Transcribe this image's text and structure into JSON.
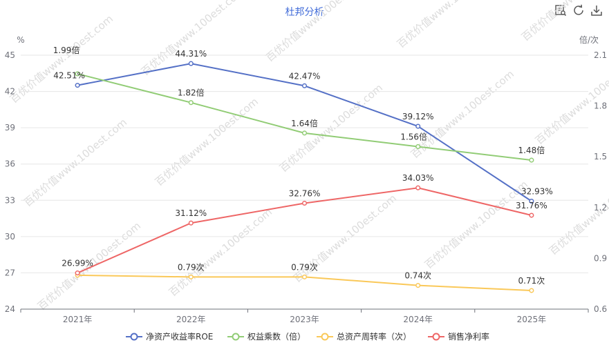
{
  "toolbar": {
    "icons": [
      "data-view-icon",
      "restore-icon",
      "download-icon"
    ]
  },
  "colors": {
    "roe": "#5470c6",
    "equity_multiplier": "#91cc75",
    "asset_turnover": "#fac858",
    "net_margin": "#ee6666",
    "title": "#3f6ad8",
    "axis_text": "#6e7079",
    "grid": "#e6e6e6",
    "watermark": "#dcdcdc"
  },
  "watermark": "百优价值www.100est.com",
  "chart_data": {
    "type": "line",
    "title": "杜邦分析",
    "categories": [
      "2021年",
      "2022年",
      "2023年",
      "2024年",
      "2025年"
    ],
    "y_left": {
      "label": "%",
      "min": 24,
      "max": 45,
      "ticks": [
        "24",
        "27",
        "30",
        "33",
        "36",
        "39",
        "42",
        "45"
      ]
    },
    "y_right": {
      "label": "倍/次",
      "min": 0.6,
      "max": 2.1,
      "ticks": [
        "0.6",
        "0.9",
        "1.2",
        "1.5",
        "1.8",
        "2.1"
      ]
    },
    "legend_position": "bottom",
    "grid": true,
    "series": [
      {
        "name": "净资产收益率ROE",
        "axis": "left",
        "color_key": "roe",
        "values": [
          42.51,
          44.31,
          42.47,
          39.12,
          32.93
        ],
        "labels": [
          "42.51%",
          "44.31%",
          "42.47%",
          "39.12%",
          "32.93%"
        ]
      },
      {
        "name": "权益乘数（倍）",
        "axis": "right",
        "color_key": "equity_multiplier",
        "values": [
          1.99,
          1.82,
          1.64,
          1.56,
          1.48
        ],
        "labels": [
          "1.99倍",
          "1.82倍",
          "1.64倍",
          "1.56倍",
          "1.48倍"
        ]
      },
      {
        "name": "总资产周转率（次）",
        "axis": "right",
        "color_key": "asset_turnover",
        "values": [
          0.8,
          0.79,
          0.79,
          0.74,
          0.71
        ],
        "labels": [
          "",
          "0.79次",
          "0.79次",
          "0.74次",
          "0.71次"
        ]
      },
      {
        "name": "销售净利率",
        "axis": "left",
        "color_key": "net_margin",
        "values": [
          26.99,
          31.12,
          32.76,
          34.03,
          31.76
        ],
        "labels": [
          "26.99%",
          "31.12%",
          "32.76%",
          "34.03%",
          "31.76%"
        ]
      }
    ]
  }
}
